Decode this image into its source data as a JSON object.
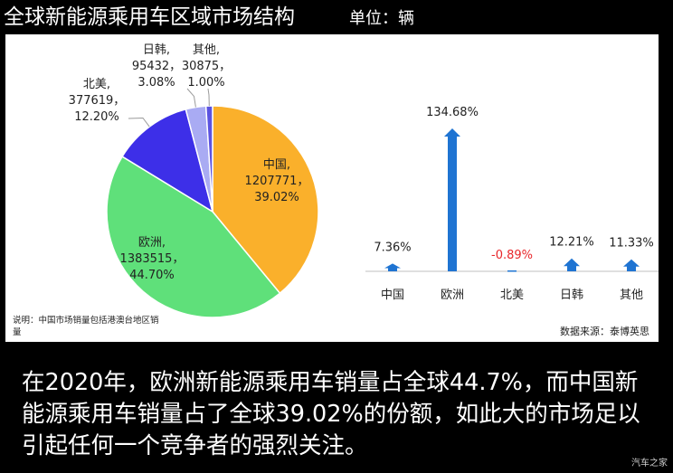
{
  "header": {
    "title": "全球新能源乘用车区域市场结构",
    "unit": "单位：辆"
  },
  "chart_data": [
    {
      "type": "pie",
      "slices": [
        {
          "name": "中国",
          "value": 1207771,
          "percent": "39.02%",
          "color": "#FAB02B"
        },
        {
          "name": "欧洲",
          "value": 1383515,
          "percent": "44.70%",
          "color": "#5FE07A"
        },
        {
          "name": "北美",
          "value": 377619,
          "percent": "12.20%",
          "color": "#3D2FE8"
        },
        {
          "name": "日韩",
          "value": 95432,
          "percent": "3.08%",
          "color": "#A9ABF3"
        },
        {
          "name": "其他",
          "value": 30875,
          "percent": "1.00%",
          "color": "#5B52E0"
        }
      ],
      "labels": [
        {
          "lines": [
            "中国,",
            "1207771，",
            "39.02%"
          ]
        },
        {
          "lines": [
            "欧洲,",
            "1383515，",
            "44.70%"
          ]
        },
        {
          "lines": [
            "北美,",
            "377619，",
            "12.20%"
          ]
        },
        {
          "lines": [
            "日韩,",
            "95432，",
            "3.08%"
          ]
        },
        {
          "lines": [
            "其他,",
            "30875，",
            "1.00%"
          ]
        }
      ]
    },
    {
      "type": "bar",
      "categories": [
        "中国",
        "欧洲",
        "北美",
        "日韩",
        "其他"
      ],
      "values": [
        7.36,
        134.68,
        -0.89,
        12.21,
        11.33
      ],
      "value_labels": [
        "7.36%",
        "134.68%",
        "-0.89%",
        "12.21%",
        "11.33%"
      ],
      "bar_color": "#1F74D2",
      "negative_label_color": "#E8262A"
    }
  ],
  "note": "说明：中国市场销量包括港澳台地区销量",
  "source": "数据来源：泰博英思",
  "caption": "在2020年，欧洲新能源乘用车销量占全球44.7%，而中国新能源乘用车销量占了全球39.02%的份额，如此大的市场足以引起任何一个竞争者的强烈关注。",
  "watermark": "汽车之家"
}
